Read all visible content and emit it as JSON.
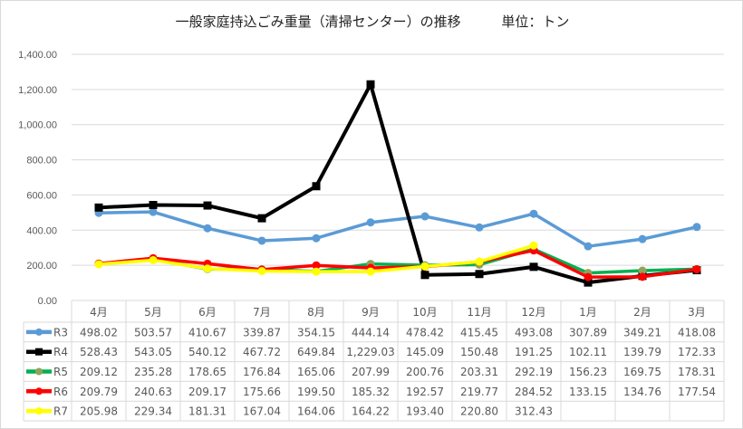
{
  "chart_data": {
    "type": "line",
    "title": "一般家庭持込ごみ重量（清掃センター）の推移",
    "unit_label": "単位：トン",
    "categories": [
      "4月",
      "5月",
      "6月",
      "7月",
      "8月",
      "9月",
      "10月",
      "11月",
      "12月",
      "1月",
      "2月",
      "3月"
    ],
    "ylim": [
      0,
      1400
    ],
    "yticks": [
      "0.00",
      "200.00",
      "400.00",
      "600.00",
      "800.00",
      "1,000.00",
      "1,200.00",
      "1,400.00"
    ],
    "grid": true,
    "legend": "data-table",
    "series": [
      {
        "name": "R3",
        "color": "#5B9BD5",
        "marker": "circle",
        "values": [
          498.02,
          503.57,
          410.67,
          339.87,
          354.15,
          444.14,
          478.42,
          415.45,
          493.08,
          307.89,
          349.21,
          418.08
        ],
        "labels": [
          "498.02",
          "503.57",
          "410.67",
          "339.87",
          "354.15",
          "444.14",
          "478.42",
          "415.45",
          "493.08",
          "307.89",
          "349.21",
          "418.08"
        ]
      },
      {
        "name": "R4",
        "color": "#000000",
        "marker": "square",
        "values": [
          528.43,
          543.05,
          540.12,
          467.72,
          649.84,
          1229.03,
          145.09,
          150.48,
          191.25,
          102.11,
          139.79,
          172.33
        ],
        "labels": [
          "528.43",
          "543.05",
          "540.12",
          "467.72",
          "649.84",
          "1,229.03",
          "145.09",
          "150.48",
          "191.25",
          "102.11",
          "139.79",
          "172.33"
        ]
      },
      {
        "name": "R5",
        "color": "#00B050",
        "markerColor": "#8FA35A",
        "marker": "circle",
        "values": [
          209.12,
          235.28,
          178.65,
          176.84,
          165.06,
          207.99,
          200.76,
          203.31,
          292.19,
          156.23,
          169.75,
          178.31
        ],
        "labels": [
          "209.12",
          "235.28",
          "178.65",
          "176.84",
          "165.06",
          "207.99",
          "200.76",
          "203.31",
          "292.19",
          "156.23",
          "169.75",
          "178.31"
        ]
      },
      {
        "name": "R6",
        "color": "#FF0000",
        "marker": "circle",
        "values": [
          209.79,
          240.63,
          209.17,
          175.66,
          199.5,
          185.32,
          192.57,
          219.77,
          284.52,
          133.15,
          134.76,
          177.54
        ],
        "labels": [
          "209.79",
          "240.63",
          "209.17",
          "175.66",
          "199.50",
          "185.32",
          "192.57",
          "219.77",
          "284.52",
          "133.15",
          "134.76",
          "177.54"
        ]
      },
      {
        "name": "R7",
        "color": "#FFFF00",
        "marker": "circle",
        "values": [
          205.98,
          229.34,
          181.31,
          167.04,
          164.06,
          164.22,
          193.4,
          220.8,
          312.43,
          null,
          null,
          null
        ],
        "labels": [
          "205.98",
          "229.34",
          "181.31",
          "167.04",
          "164.06",
          "164.22",
          "193.40",
          "220.80",
          "312.43",
          "",
          "",
          ""
        ]
      }
    ]
  }
}
